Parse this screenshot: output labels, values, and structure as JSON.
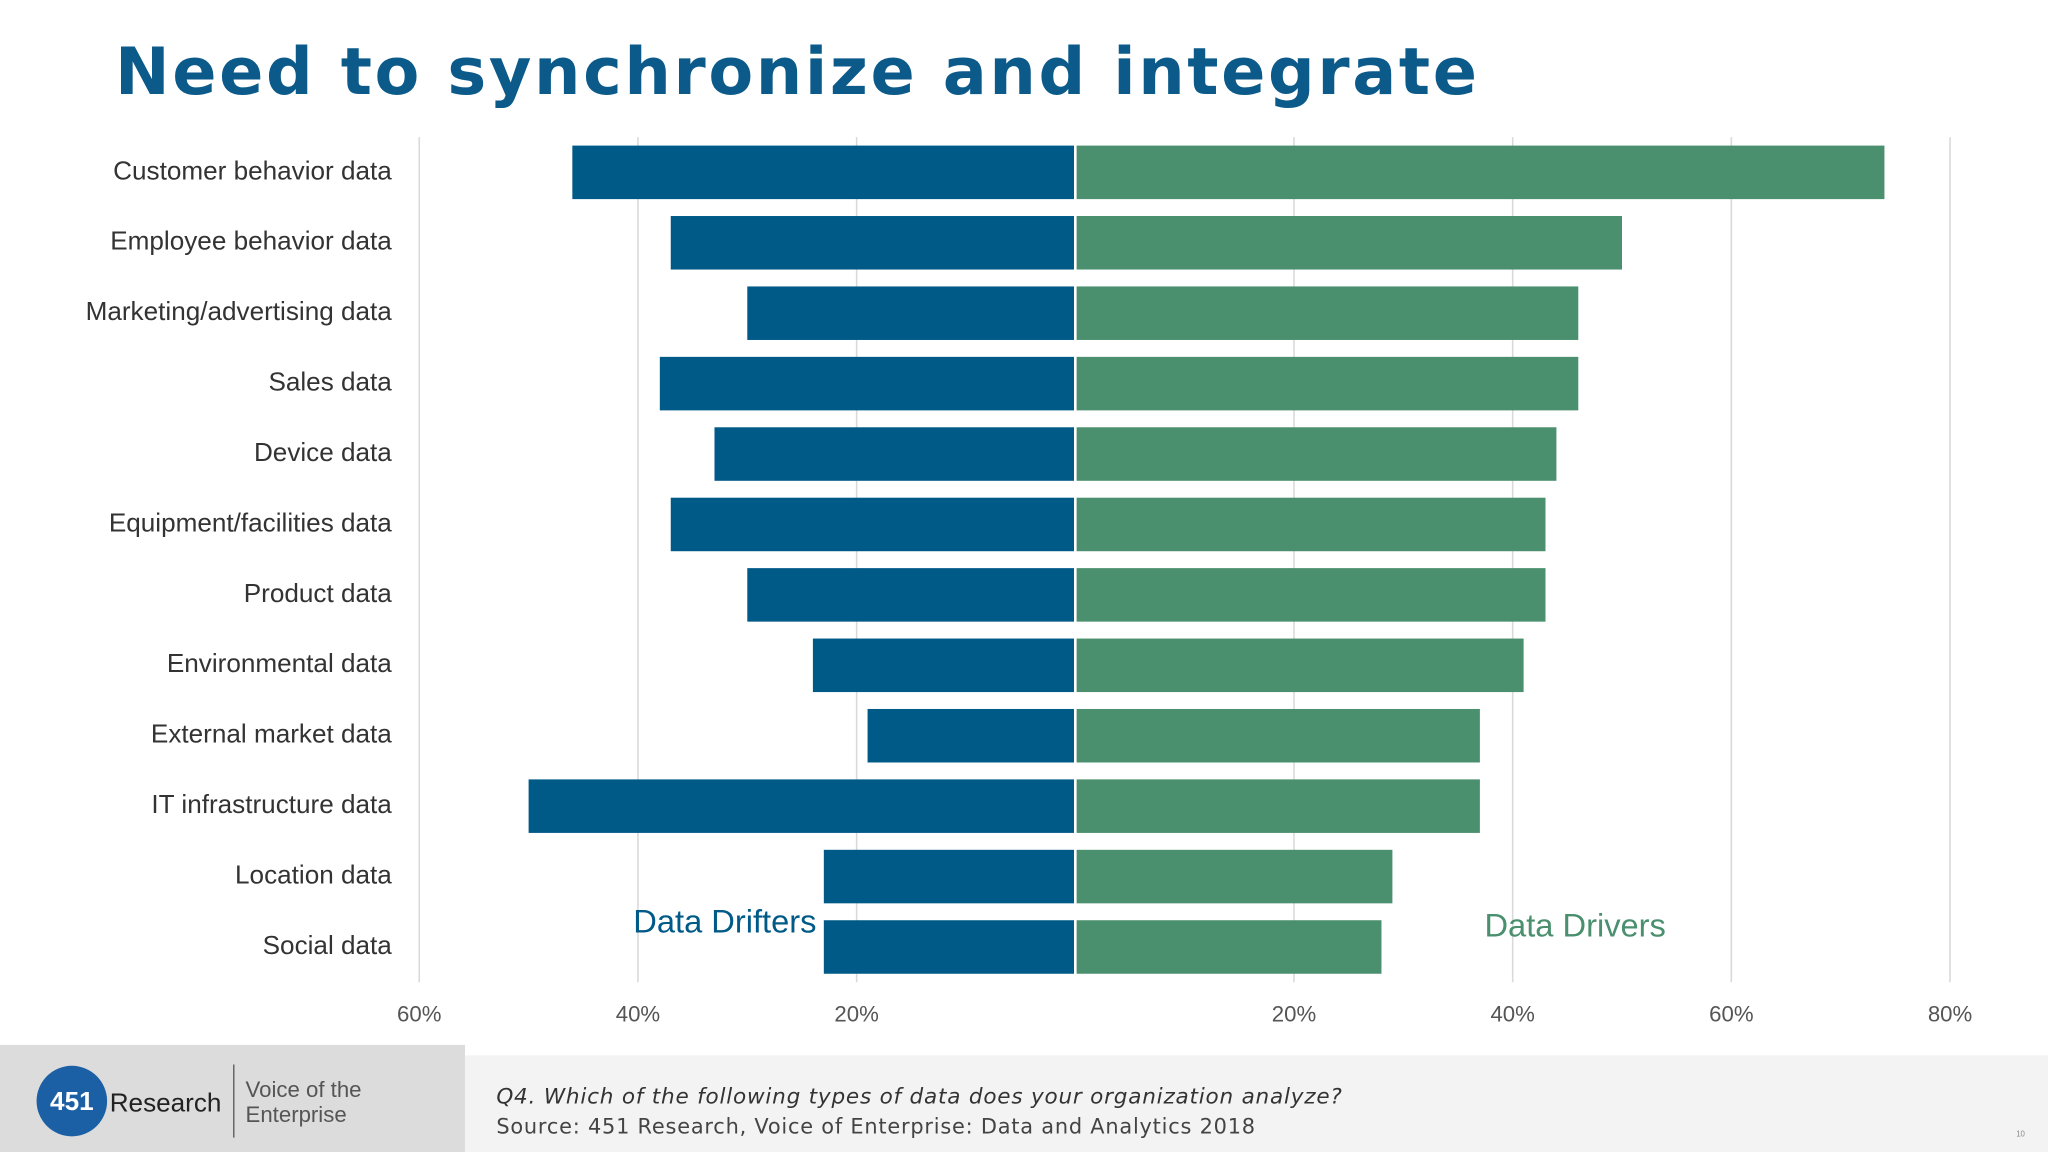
{
  "header": {
    "title": "Need to synchronize and integrate"
  },
  "chart_data": {
    "type": "bar",
    "horizontal": true,
    "categories": [
      "Customer behavior data",
      "Employee behavior data",
      "Marketing/advertising data",
      "Sales data",
      "Device data",
      "Equipment/facilities data",
      "Product data",
      "Environmental data",
      "External market data",
      "IT infrastructure data",
      "Location data",
      "Social data"
    ],
    "series": [
      {
        "name": "Data Drifters",
        "color": "#005a87",
        "values": [
          -46,
          -37,
          -30,
          -38,
          -33,
          -37,
          -30,
          -24,
          -19,
          -50,
          -23,
          -23
        ]
      },
      {
        "name": "Data Drivers",
        "color": "#4a8f6e",
        "values": [
          74,
          50,
          46,
          46,
          44,
          43,
          43,
          41,
          37,
          37,
          29,
          28
        ]
      }
    ],
    "xlim": [
      -60,
      80
    ],
    "xticks": [
      {
        "value": -60,
        "label": "60%"
      },
      {
        "value": -40,
        "label": "40%"
      },
      {
        "value": -20,
        "label": "20%"
      },
      {
        "value": 20,
        "label": "20%"
      },
      {
        "value": 40,
        "label": "40%"
      },
      {
        "value": 60,
        "label": "60%"
      },
      {
        "value": 80,
        "label": "80%"
      }
    ],
    "grid": true
  },
  "footer": {
    "logo": {
      "number": "451",
      "name": "Research",
      "tagline_1": "Voice of the",
      "tagline_2": "Enterprise"
    },
    "question": "Q4. Which of the following types of data does your organization analyze?",
    "source": "Source: 451 Research, Voice of Enterprise: Data and Analytics 2018",
    "page_number": "10"
  }
}
